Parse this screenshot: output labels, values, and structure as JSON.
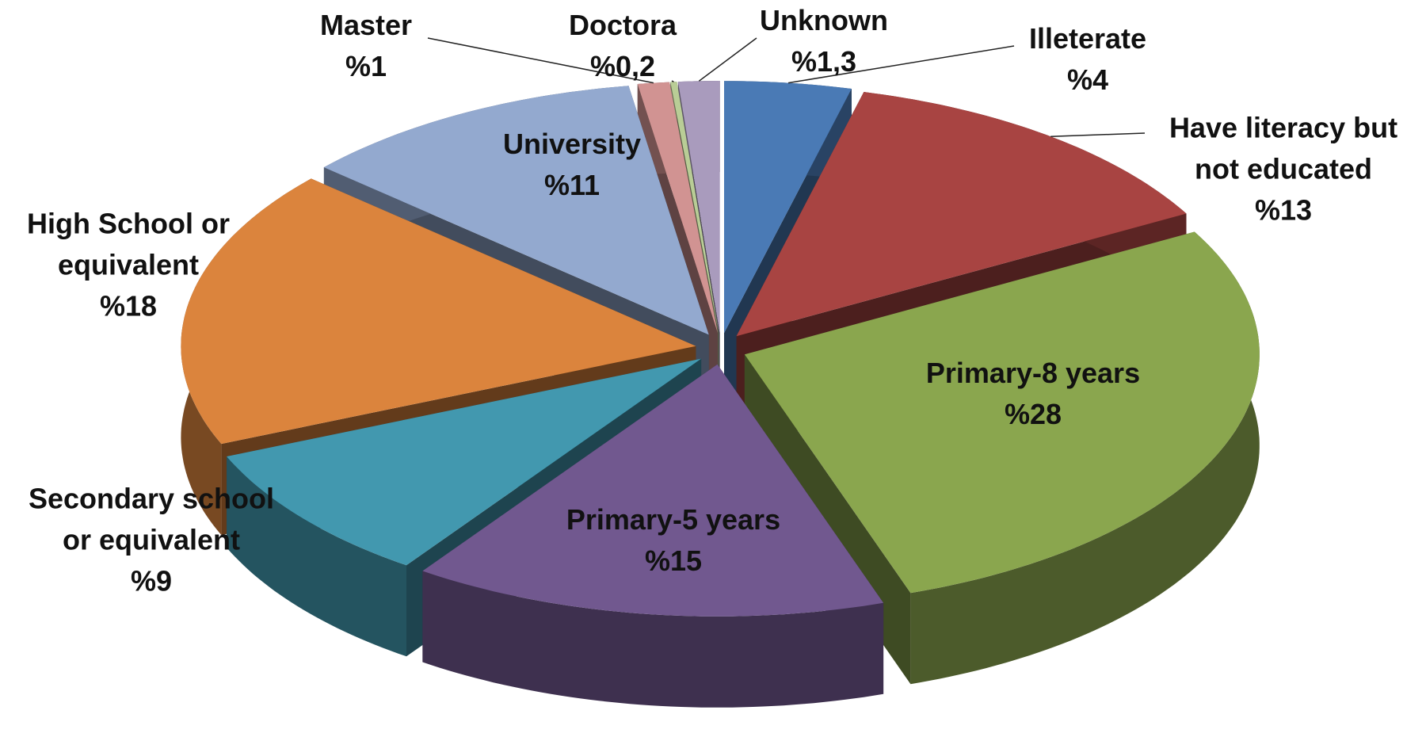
{
  "chart_data": {
    "type": "pie",
    "categories": [
      "Illeterate",
      "Have literacy but not educated",
      "Primary-8 years",
      "Primary-5 years",
      "Secondary school or equivalent",
      "High School or equivalent",
      "University",
      "Master",
      "Doctora",
      "Unknown"
    ],
    "values": [
      4,
      13,
      28,
      15,
      9,
      18,
      11,
      1,
      0.2,
      1.3
    ],
    "value_labels": [
      "%4",
      "%13",
      "%28",
      "%15",
      "%9",
      "%18",
      "%11",
      "%1",
      "%0,2",
      "%1,3"
    ],
    "colors": [
      "#4a7ab5",
      "#a84442",
      "#8aa64e",
      "#71588f",
      "#4298af",
      "#db843d",
      "#93a9cf",
      "#d19392",
      "#b9cd96",
      "#a99bbd"
    ]
  }
}
